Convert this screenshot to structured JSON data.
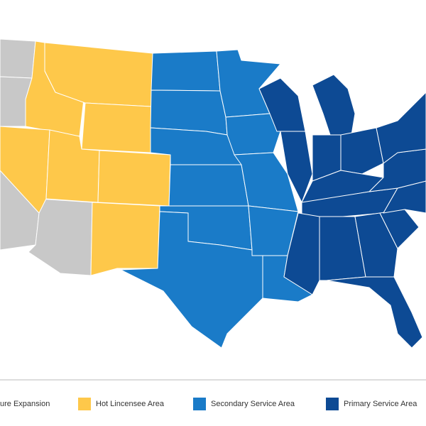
{
  "legend": [
    {
      "label": "ure Expansion",
      "color": "#c8c8c8"
    },
    {
      "label": "Hot Lincensee Area",
      "color": "#fec84a"
    },
    {
      "label": "Secondary Service Area",
      "color": "#1a7bc8"
    },
    {
      "label": "Primary Service Area",
      "color": "#0d4a94"
    }
  ]
}
